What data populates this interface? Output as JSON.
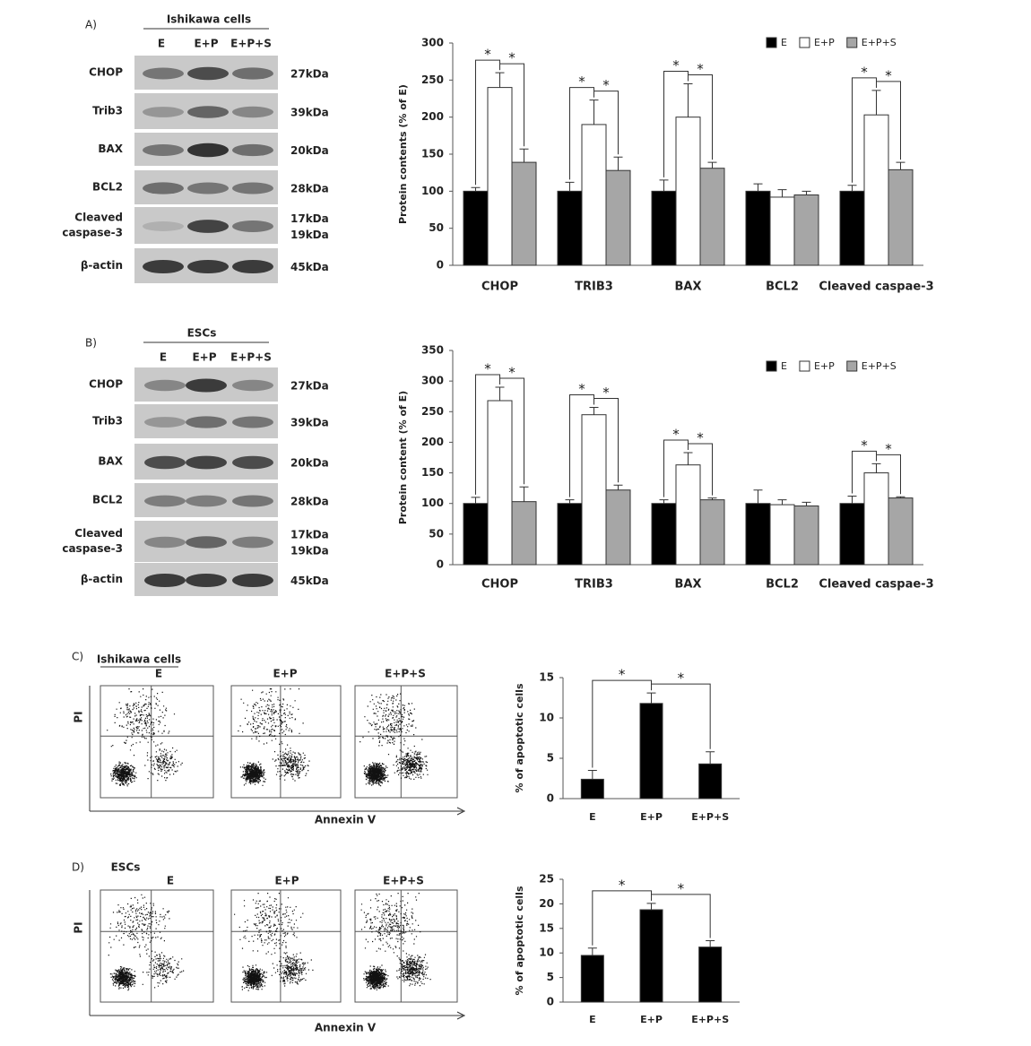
{
  "chart_data": [
    {
      "type": "bar",
      "y_label": "Protein contents (% of E)",
      "legend": "upper right",
      "categories": [
        "CHOP",
        "TRIB3",
        "BAX",
        "BCL2",
        "Cleaved caspae-3"
      ],
      "series": [
        {
          "name": "E",
          "color": "#000000",
          "values": [
            100,
            100,
            100,
            100,
            100
          ],
          "errors": [
            5,
            12,
            15,
            10,
            8
          ]
        },
        {
          "name": "E+P",
          "color": "#ffffff",
          "values": [
            240,
            190,
            200,
            92,
            203
          ],
          "errors": [
            20,
            33,
            45,
            10,
            33
          ]
        },
        {
          "name": "E+P+S",
          "color": "#a6a6a6",
          "values": [
            139,
            128,
            131,
            95,
            129
          ],
          "errors": [
            18,
            18,
            8,
            5,
            10
          ]
        }
      ],
      "ylim": [
        0,
        300
      ],
      "yticks": [
        0,
        50,
        100,
        150,
        200,
        250,
        300
      ],
      "significance": [
        {
          "category": "CHOP",
          "groups": [
            "E",
            "E+P"
          ],
          "label": "*"
        },
        {
          "category": "CHOP",
          "groups": [
            "E+P",
            "E+P+S"
          ],
          "label": "*"
        },
        {
          "category": "TRIB3",
          "groups": [
            "E",
            "E+P"
          ],
          "label": "*"
        },
        {
          "category": "TRIB3",
          "groups": [
            "E+P",
            "E+P+S"
          ],
          "label": "*"
        },
        {
          "category": "BAX",
          "groups": [
            "E",
            "E+P"
          ],
          "label": "*"
        },
        {
          "category": "BAX",
          "groups": [
            "E+P",
            "E+P+S"
          ],
          "label": "*"
        },
        {
          "category": "Cleaved caspae-3",
          "groups": [
            "E",
            "E+P"
          ],
          "label": "*"
        },
        {
          "category": "Cleaved caspae-3",
          "groups": [
            "E+P",
            "E+P+S"
          ],
          "label": "*"
        }
      ]
    },
    {
      "type": "bar",
      "y_label": "Protein content  (% of E)",
      "legend": "upper right",
      "categories": [
        "CHOP",
        "TRIB3",
        "BAX",
        "BCL2",
        "Cleaved caspae-3"
      ],
      "series": [
        {
          "name": "E",
          "color": "#000000",
          "values": [
            100,
            100,
            100,
            100,
            100
          ],
          "errors": [
            10,
            6,
            6,
            22,
            12
          ]
        },
        {
          "name": "E+P",
          "color": "#ffffff",
          "values": [
            268,
            245,
            163,
            98,
            150
          ],
          "errors": [
            22,
            12,
            20,
            8,
            15
          ]
        },
        {
          "name": "E+P+S",
          "color": "#a6a6a6",
          "values": [
            103,
            122,
            106,
            96,
            109
          ],
          "errors": [
            24,
            8,
            3,
            6,
            2
          ]
        }
      ],
      "ylim": [
        0,
        350
      ],
      "yticks": [
        0,
        50,
        100,
        150,
        200,
        250,
        300,
        350
      ],
      "significance": [
        {
          "category": "CHOP",
          "groups": [
            "E",
            "E+P"
          ],
          "label": "*"
        },
        {
          "category": "CHOP",
          "groups": [
            "E+P",
            "E+P+S"
          ],
          "label": "*"
        },
        {
          "category": "TRIB3",
          "groups": [
            "E",
            "E+P"
          ],
          "label": "*"
        },
        {
          "category": "TRIB3",
          "groups": [
            "E+P",
            "E+P+S"
          ],
          "label": "*"
        },
        {
          "category": "BAX",
          "groups": [
            "E",
            "E+P"
          ],
          "label": "*"
        },
        {
          "category": "BAX",
          "groups": [
            "E+P",
            "E+P+S"
          ],
          "label": "*"
        },
        {
          "category": "Cleaved caspae-3",
          "groups": [
            "E",
            "E+P"
          ],
          "label": "*"
        },
        {
          "category": "Cleaved caspae-3",
          "groups": [
            "E+P",
            "E+P+S"
          ],
          "label": "*"
        }
      ]
    },
    {
      "type": "bar",
      "y_label": "% of apoptotic cells",
      "categories": [
        "E",
        "E+P",
        "E+P+S"
      ],
      "values": [
        2.4,
        11.8,
        4.3
      ],
      "errors": [
        1.1,
        1.3,
        1.5
      ],
      "color": "#000000",
      "ylim": [
        0,
        15
      ],
      "yticks": [
        0,
        5,
        10,
        15
      ],
      "significance": [
        {
          "groups": [
            "E",
            "E+P"
          ],
          "label": "*"
        },
        {
          "groups": [
            "E+P",
            "E+P+S"
          ],
          "label": "*"
        }
      ]
    },
    {
      "type": "bar",
      "y_label": "% of apoptotic cells",
      "categories": [
        "E",
        "E+P",
        "E+P+S"
      ],
      "values": [
        9.5,
        18.8,
        11.2
      ],
      "errors": [
        1.5,
        1.3,
        1.3
      ],
      "color": "#000000",
      "ylim": [
        0,
        25
      ],
      "yticks": [
        0,
        5,
        10,
        15,
        20,
        25
      ],
      "significance": [
        {
          "groups": [
            "E",
            "E+P"
          ],
          "label": "*"
        },
        {
          "groups": [
            "E+P",
            "E+P+S"
          ],
          "label": "*"
        }
      ]
    }
  ],
  "blots": [
    {
      "label": "A)",
      "header": "Ishikawa cells",
      "lanes": [
        "E",
        "E+P",
        "E+P+S"
      ],
      "rows": [
        {
          "name": [
            "CHOP"
          ],
          "size": [
            "27kDa"
          ]
        },
        {
          "name": [
            "Trib3"
          ],
          "size": [
            "39kDa"
          ]
        },
        {
          "name": [
            "BAX"
          ],
          "size": [
            "20kDa"
          ]
        },
        {
          "name": [
            "BCL2"
          ],
          "size": [
            "28kDa"
          ]
        },
        {
          "name": [
            "Cleaved",
            "caspase-3"
          ],
          "size": [
            "17kDa",
            "19kDa"
          ]
        },
        {
          "name": [
            "β-actin"
          ],
          "size": [
            "45kDa"
          ]
        }
      ]
    },
    {
      "label": "B)",
      "header": "ESCs",
      "lanes": [
        "E",
        "E+P",
        "E+P+S"
      ],
      "rows": [
        {
          "name": [
            "CHOP"
          ],
          "size": [
            "27kDa"
          ]
        },
        {
          "name": [
            "Trib3"
          ],
          "size": [
            "39kDa"
          ]
        },
        {
          "name": [
            "BAX"
          ],
          "size": [
            "20kDa"
          ]
        },
        {
          "name": [
            "BCL2"
          ],
          "size": [
            "28kDa"
          ]
        },
        {
          "name": [
            "Cleaved",
            "caspase-3"
          ],
          "size": [
            "17kDa",
            "19kDa"
          ]
        },
        {
          "name": [
            "β-actin"
          ],
          "size": [
            "45kDa"
          ]
        }
      ]
    }
  ],
  "flow": [
    {
      "label": "C)",
      "header": "Ishikawa cells",
      "lanes": [
        "E",
        "E+P",
        "E+P+S"
      ],
      "y_label": "PI",
      "x_label": "Annexin V"
    },
    {
      "label": "D)",
      "header": "ESCs",
      "lanes": [
        "E",
        "E+P",
        "E+P+S"
      ],
      "y_label": "PI",
      "x_label": "Annexin V"
    }
  ]
}
